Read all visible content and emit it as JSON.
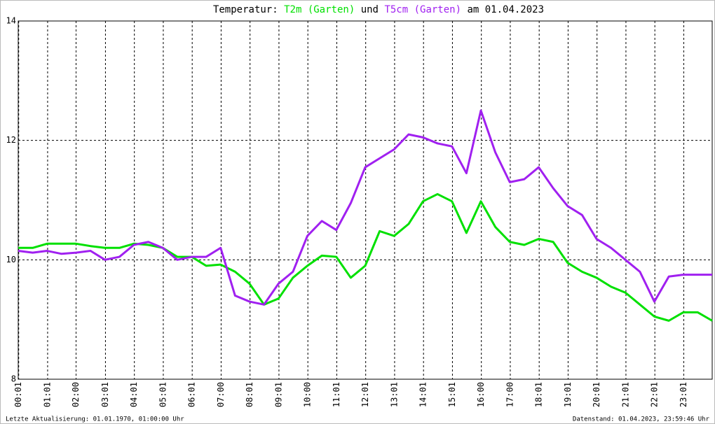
{
  "chart_data": {
    "type": "line",
    "title_segments": [
      "Temperatur:",
      "und",
      "am 01.04.2023"
    ],
    "footer_left": "Letzte Aktualisierung: 01.01.1970, 01:00:00 Uhr",
    "footer_right": "Datenstand: 01.04.2023, 23:59:46 Uhr",
    "xlim": [
      0,
      1440
    ],
    "ylim": [
      8,
      14
    ],
    "yticks": [
      8,
      10,
      12,
      14
    ],
    "xticks": [
      {
        "value": 1,
        "label": "00:01"
      },
      {
        "value": 61,
        "label": "01:01"
      },
      {
        "value": 120,
        "label": "02:00"
      },
      {
        "value": 181,
        "label": "03:01"
      },
      {
        "value": 241,
        "label": "04:01"
      },
      {
        "value": 301,
        "label": "05:01"
      },
      {
        "value": 361,
        "label": "06:01"
      },
      {
        "value": 421,
        "label": "07:00"
      },
      {
        "value": 481,
        "label": "08:01"
      },
      {
        "value": 541,
        "label": "09:01"
      },
      {
        "value": 601,
        "label": "10:00"
      },
      {
        "value": 661,
        "label": "11:01"
      },
      {
        "value": 721,
        "label": "12:01"
      },
      {
        "value": 781,
        "label": "13:01"
      },
      {
        "value": 841,
        "label": "14:01"
      },
      {
        "value": 901,
        "label": "15:01"
      },
      {
        "value": 961,
        "label": "16:00"
      },
      {
        "value": 1021,
        "label": "17:00"
      },
      {
        "value": 1081,
        "label": "18:01"
      },
      {
        "value": 1141,
        "label": "19:01"
      },
      {
        "value": 1201,
        "label": "20:01"
      },
      {
        "value": 1261,
        "label": "21:01"
      },
      {
        "value": 1321,
        "label": "22:01"
      },
      {
        "value": 1381,
        "label": "23:01"
      }
    ],
    "grid": true,
    "x": [
      0,
      30,
      60,
      90,
      120,
      150,
      180,
      210,
      240,
      270,
      300,
      330,
      360,
      390,
      420,
      450,
      480,
      510,
      540,
      570,
      600,
      630,
      660,
      690,
      720,
      750,
      780,
      810,
      840,
      870,
      900,
      930,
      960,
      990,
      1020,
      1050,
      1080,
      1110,
      1140,
      1170,
      1200,
      1230,
      1260,
      1290,
      1320,
      1350,
      1380,
      1410,
      1440
    ],
    "series": [
      {
        "name": "T2m (Garten)",
        "color": "#00e000",
        "values": [
          10.2,
          10.2,
          10.27,
          10.27,
          10.27,
          10.23,
          10.2,
          10.2,
          10.27,
          10.25,
          10.2,
          10.05,
          10.05,
          9.9,
          9.92,
          9.8,
          9.6,
          9.25,
          9.35,
          9.7,
          9.9,
          10.07,
          10.05,
          9.7,
          9.9,
          10.48,
          10.4,
          10.6,
          10.98,
          11.1,
          10.98,
          10.45,
          10.98,
          10.55,
          10.3,
          10.25,
          10.35,
          10.3,
          9.95,
          9.8,
          9.7,
          9.55,
          9.45,
          9.25,
          9.05,
          8.98,
          9.12,
          9.12,
          8.98
        ]
      },
      {
        "name": "T5cm (Garten)",
        "color": "#a020f0",
        "values": [
          10.15,
          10.12,
          10.15,
          10.1,
          10.12,
          10.15,
          10.0,
          10.05,
          10.25,
          10.3,
          10.2,
          10.0,
          10.05,
          10.05,
          10.2,
          9.4,
          9.3,
          9.25,
          9.6,
          9.8,
          10.4,
          10.65,
          10.5,
          10.95,
          11.55,
          11.7,
          11.85,
          12.1,
          12.05,
          11.95,
          11.9,
          11.45,
          12.5,
          11.8,
          11.3,
          11.35,
          11.55,
          11.2,
          10.9,
          10.75,
          10.35,
          10.2,
          10.0,
          9.8,
          9.3,
          9.72,
          9.75,
          9.75,
          9.75
        ]
      }
    ]
  }
}
